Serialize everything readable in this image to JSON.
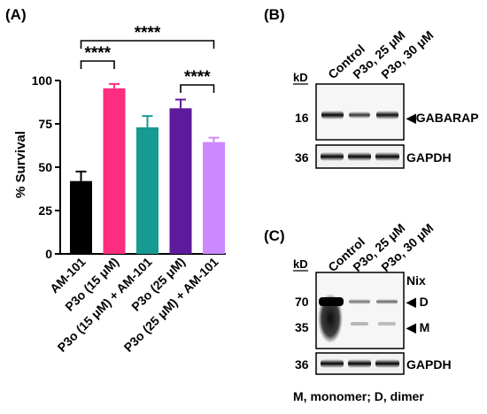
{
  "panels": {
    "a_label": "(A)",
    "b_label": "(B)",
    "c_label": "(C)"
  },
  "chart_data": {
    "type": "bar",
    "title": "",
    "xlabel": "",
    "ylabel": "% Survival",
    "ylim": [
      0,
      100
    ],
    "yticks": [
      0,
      25,
      50,
      75,
      100
    ],
    "grid": false,
    "categories": [
      "AM-101",
      "P3o (15 μM)",
      "P3o (15 μM) + AM-101",
      "P3o (25 μM)",
      "P3o (25 μM) + AM-101"
    ],
    "values": [
      42,
      95.5,
      73,
      84,
      64.5
    ],
    "errors": [
      5.5,
      2.5,
      6.5,
      5,
      2.5
    ],
    "colors": [
      "#000000",
      "#ff2d80",
      "#169a91",
      "#5e1a9c",
      "#cc88ff"
    ],
    "significance": [
      {
        "from": 0,
        "to": 1,
        "label": "****"
      },
      {
        "from": 0,
        "to": 4,
        "label": "****"
      },
      {
        "from": 3,
        "to": 4,
        "label": "****"
      }
    ]
  },
  "blot_b": {
    "columns": [
      "Control",
      "P3o, 25 μM",
      "P3o, 30 μM"
    ],
    "kd_label": "kD",
    "rows": [
      {
        "kd": "16",
        "protein": "◀GABARAP"
      },
      {
        "kd": "36",
        "protein": "GAPDH"
      }
    ]
  },
  "blot_c": {
    "columns": [
      "Control",
      "P3o, 25 μM",
      "P3o, 30 μM"
    ],
    "kd_label": "kD",
    "protein": "Nix",
    "markers": [
      {
        "kd": "70",
        "label": "◀ D"
      },
      {
        "kd": "35",
        "label": "◀ M"
      }
    ],
    "loading": {
      "kd": "36",
      "protein": "GAPDH"
    },
    "footnote": "M, monomer; D, dimer"
  }
}
